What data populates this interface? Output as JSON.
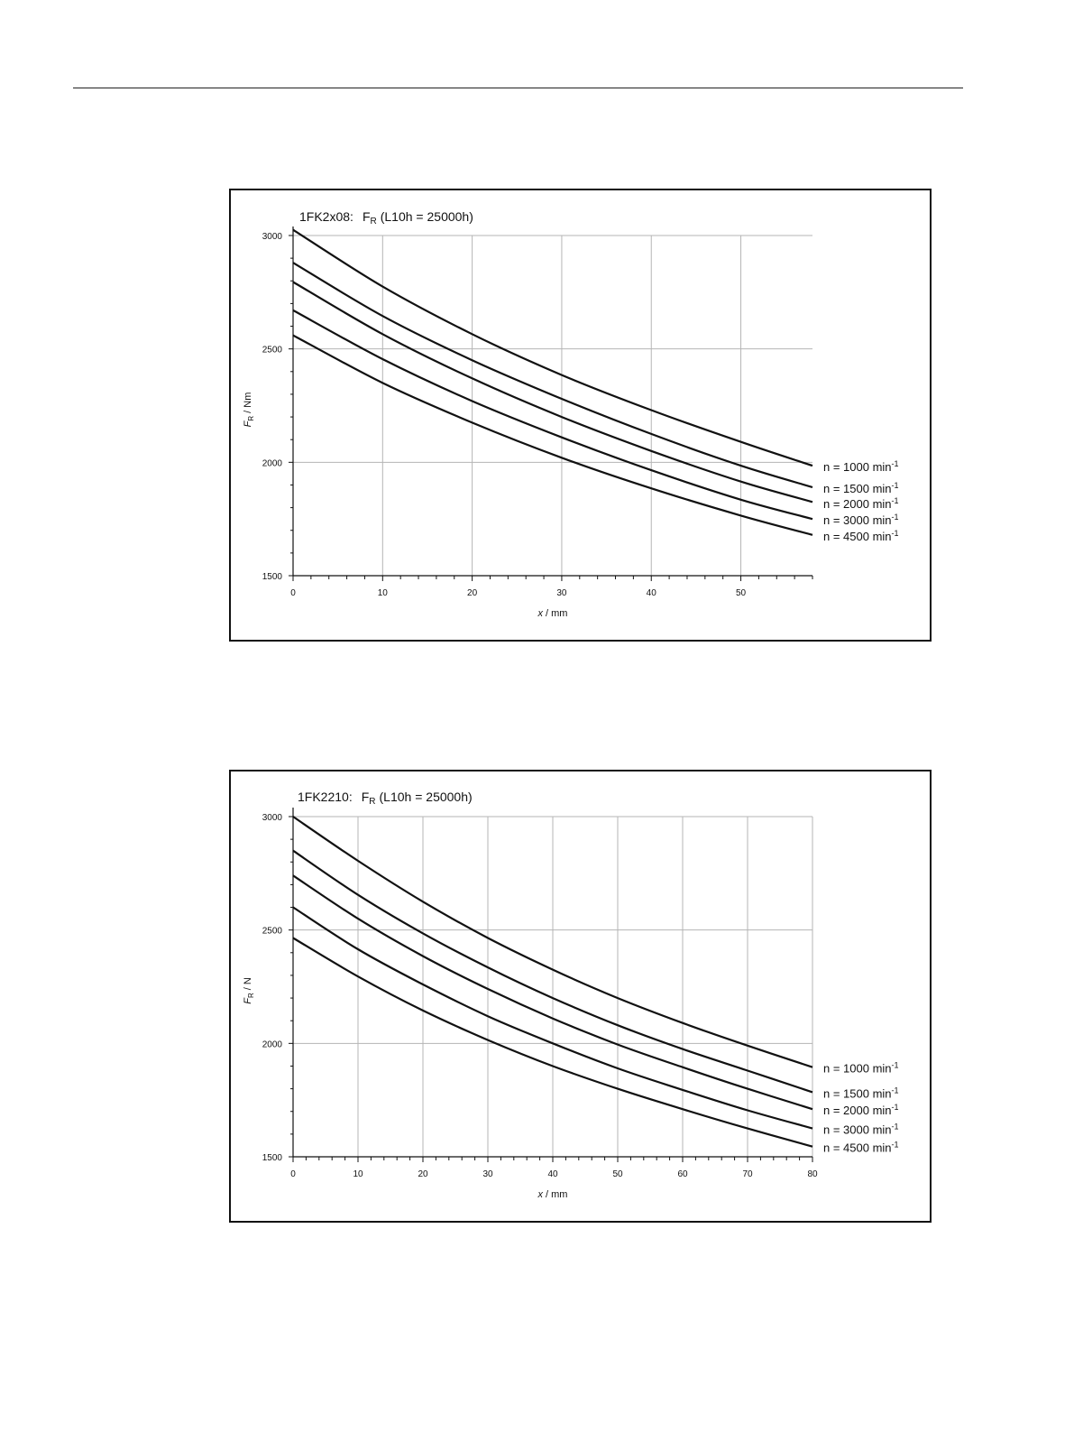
{
  "chart_data": [
    {
      "type": "line",
      "title": "1FK2x08:",
      "title_symbol": "F",
      "title_symbol_sub": "R",
      "title_condition": "(L10h = 25000h)",
      "xlabel_symbol": "x",
      "xlabel_unit": "/ mm",
      "ylabel_symbol": "F",
      "ylabel_sub": "R",
      "ylabel_unit": "/ Nm",
      "xlim": [
        0,
        58
      ],
      "ylim": [
        1500,
        3000
      ],
      "xticks": [
        0,
        10,
        20,
        30,
        40,
        50
      ],
      "yticks": [
        1500,
        2000,
        2500,
        3000
      ],
      "grid": true,
      "series": [
        {
          "name": "n = 1000 min",
          "name_sup": "-1",
          "x": [
            0,
            10,
            20,
            30,
            40,
            50,
            58
          ],
          "y": [
            3025,
            2775,
            2565,
            2385,
            2230,
            2090,
            1985
          ]
        },
        {
          "name": "n = 1500 min",
          "name_sup": "-1",
          "x": [
            0,
            10,
            20,
            30,
            40,
            50,
            58
          ],
          "y": [
            2880,
            2645,
            2450,
            2280,
            2125,
            1985,
            1890
          ]
        },
        {
          "name": "n = 2000 min",
          "name_sup": "-1",
          "x": [
            0,
            10,
            20,
            30,
            40,
            50,
            58
          ],
          "y": [
            2795,
            2565,
            2370,
            2200,
            2050,
            1915,
            1825
          ]
        },
        {
          "name": "n = 3000 min",
          "name_sup": "-1",
          "x": [
            0,
            10,
            20,
            30,
            40,
            50,
            58
          ],
          "y": [
            2670,
            2455,
            2270,
            2110,
            1965,
            1835,
            1750
          ]
        },
        {
          "name": "n = 4500 min",
          "name_sup": "-1",
          "x": [
            0,
            10,
            20,
            30,
            40,
            50,
            58
          ],
          "y": [
            2560,
            2350,
            2175,
            2020,
            1885,
            1765,
            1680
          ]
        }
      ]
    },
    {
      "type": "line",
      "title": "1FK2210:",
      "title_symbol": "F",
      "title_symbol_sub": "R",
      "title_condition": "(L10h = 25000h)",
      "xlabel_symbol": "x",
      "xlabel_unit": "/ mm",
      "ylabel_symbol": "F",
      "ylabel_sub": "R",
      "ylabel_unit": "/ N",
      "xlim": [
        0,
        80
      ],
      "ylim": [
        1500,
        3000
      ],
      "xticks": [
        0,
        10,
        20,
        30,
        40,
        50,
        60,
        70,
        80
      ],
      "yticks": [
        1500,
        2000,
        2500,
        3000
      ],
      "grid": true,
      "series": [
        {
          "name": "n = 1000 min",
          "name_sup": "-1",
          "x": [
            0,
            10,
            20,
            30,
            40,
            50,
            60,
            70,
            80
          ],
          "y": [
            3000,
            2805,
            2625,
            2465,
            2325,
            2200,
            2090,
            1990,
            1895
          ]
        },
        {
          "name": "n = 1500 min",
          "name_sup": "-1",
          "x": [
            0,
            10,
            20,
            30,
            40,
            50,
            60,
            70,
            80
          ],
          "y": [
            2850,
            2655,
            2485,
            2335,
            2200,
            2080,
            1975,
            1880,
            1785
          ]
        },
        {
          "name": "n = 2000 min",
          "name_sup": "-1",
          "x": [
            0,
            10,
            20,
            30,
            40,
            50,
            60,
            70,
            80
          ],
          "y": [
            2740,
            2550,
            2385,
            2240,
            2110,
            1995,
            1895,
            1800,
            1710
          ]
        },
        {
          "name": "n = 3000 min",
          "name_sup": "-1",
          "x": [
            0,
            10,
            20,
            30,
            40,
            50,
            60,
            70,
            80
          ],
          "y": [
            2600,
            2415,
            2260,
            2120,
            2000,
            1890,
            1795,
            1705,
            1625
          ]
        },
        {
          "name": "n = 4500 min",
          "name_sup": "-1",
          "x": [
            0,
            10,
            20,
            30,
            40,
            50,
            60,
            70,
            80
          ],
          "y": [
            2465,
            2295,
            2145,
            2015,
            1900,
            1800,
            1710,
            1625,
            1545
          ]
        }
      ]
    }
  ]
}
